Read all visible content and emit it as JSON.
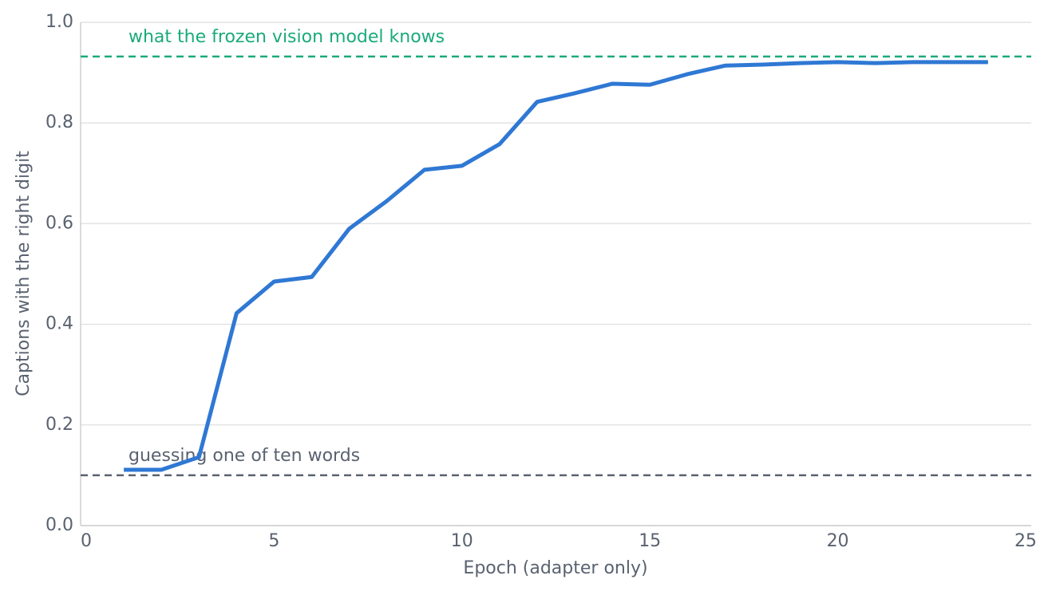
{
  "chart_data": {
    "type": "line",
    "x": [
      1,
      2,
      3,
      4,
      5,
      6,
      7,
      8,
      9,
      10,
      11,
      12,
      13,
      14,
      15,
      16,
      17,
      18,
      19,
      20,
      21,
      22,
      23,
      24
    ],
    "series": [
      {
        "color": "#2f78d4",
        "values": [
          0.111,
          0.111,
          0.136,
          0.422,
          0.485,
          0.494,
          0.59,
          0.645,
          0.707,
          0.715,
          0.758,
          0.842,
          0.859,
          0.878,
          0.876,
          0.897,
          0.914,
          0.916,
          0.919,
          0.921,
          0.919,
          0.921,
          0.921,
          0.921
        ]
      }
    ],
    "xlabel": "Epoch (adapter only)",
    "ylabel": "Captions with the right digit",
    "xlim": [
      -0.15,
      25.15
    ],
    "xticks": [
      0,
      5,
      10,
      15,
      20,
      25
    ],
    "ylim": [
      0,
      1
    ],
    "yticks": [
      {
        "value": 0,
        "label": "0.0"
      },
      0.2,
      0.4,
      0.6,
      0.8,
      {
        "value": 1,
        "label": "1.0"
      }
    ],
    "grid": true,
    "reference_lines": [
      {
        "value": 0.932,
        "label": "what the frozen vision model knows",
        "color": "#1aaa7b"
      },
      {
        "value": 0.1,
        "label": "guessing one of ten words",
        "color": "#5a6270"
      }
    ]
  }
}
